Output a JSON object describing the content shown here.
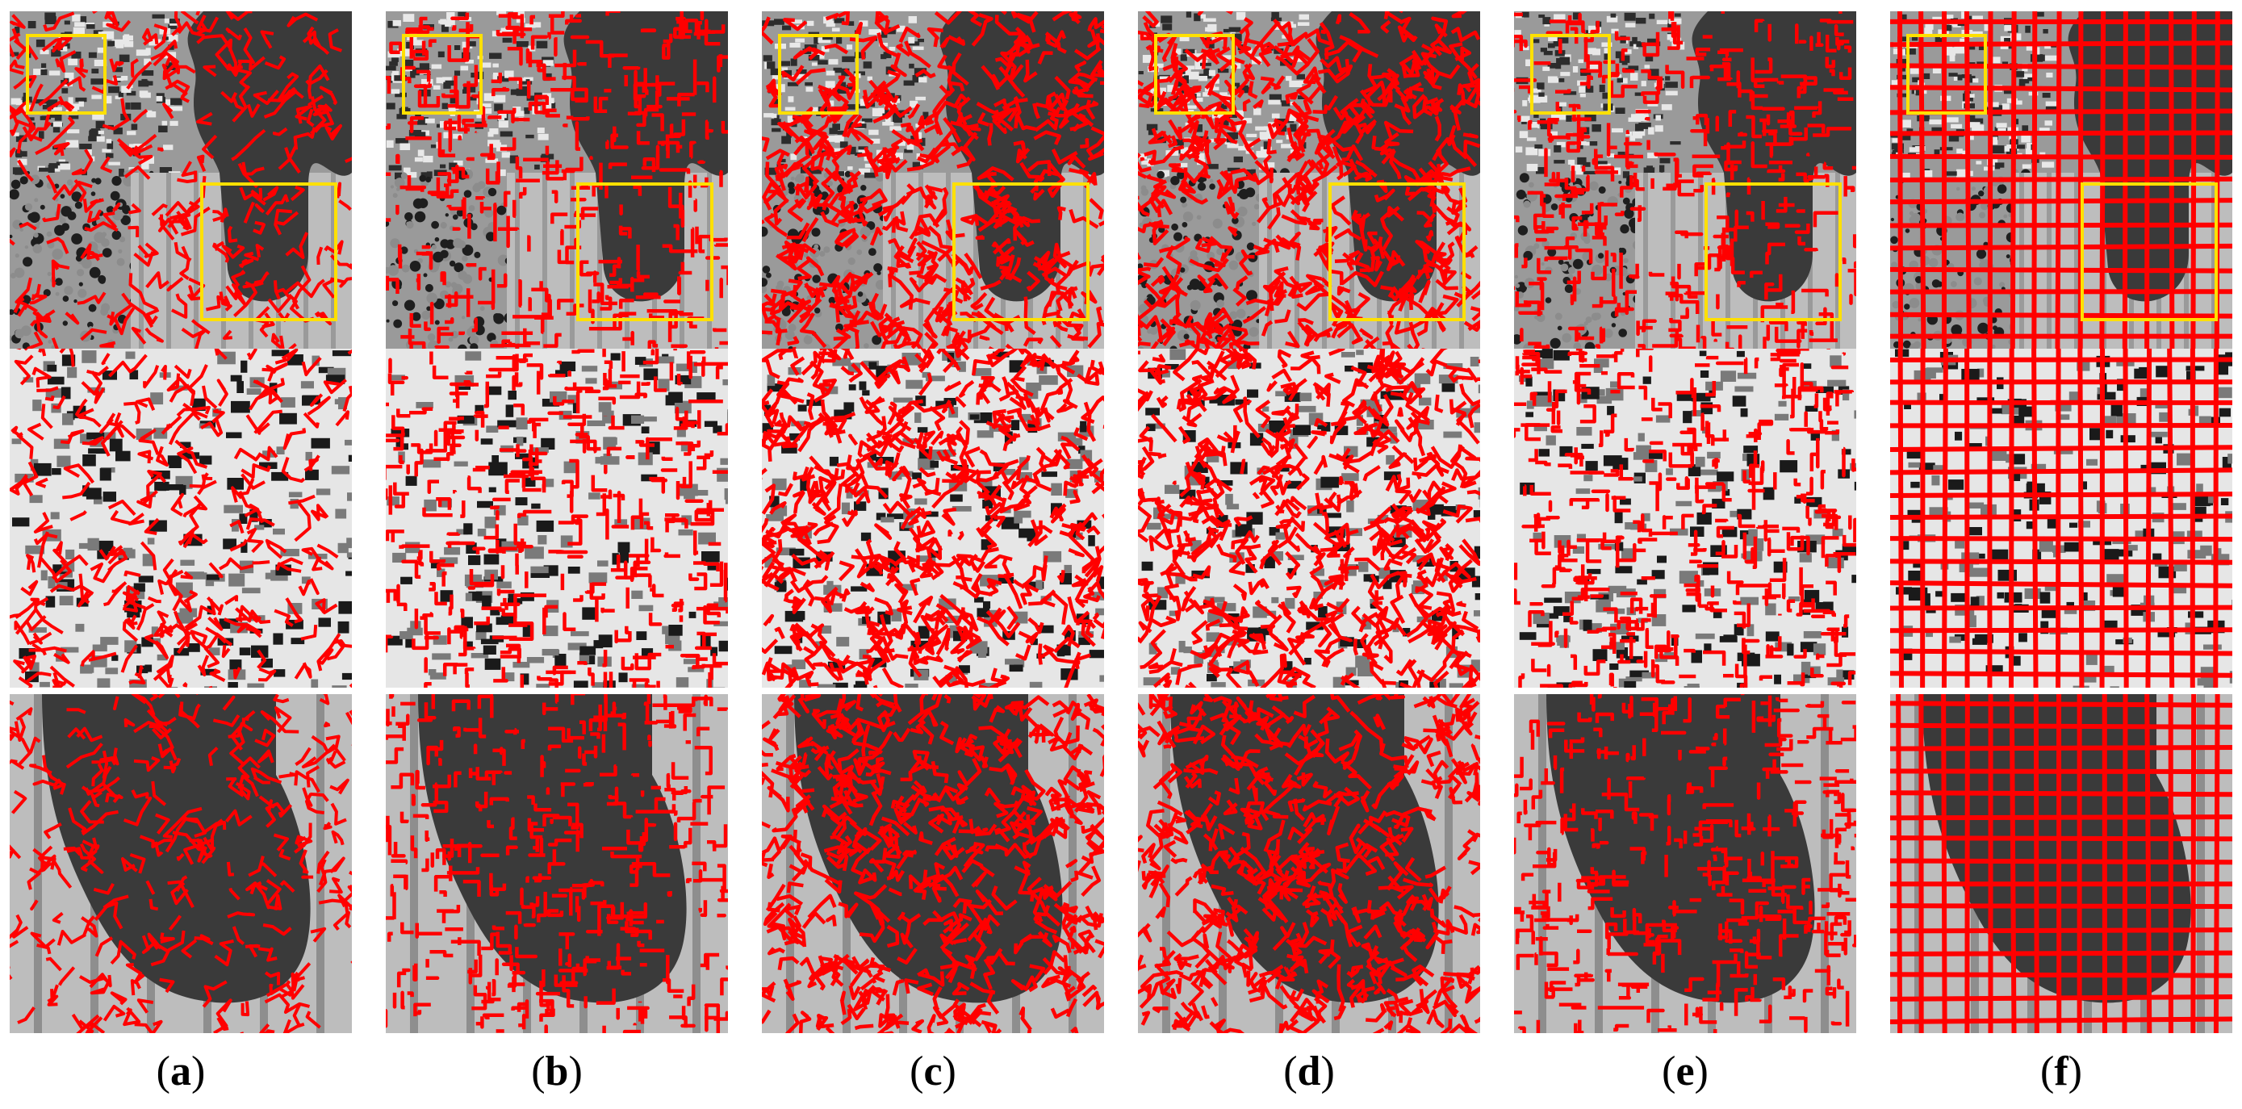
{
  "figure": {
    "panels": [
      {
        "letter": "a",
        "open": "(",
        "close": ")",
        "grid": "irregular-fine"
      },
      {
        "letter": "b",
        "open": "(",
        "close": ")",
        "grid": "irregular-jagged"
      },
      {
        "letter": "c",
        "open": "(",
        "close": ")",
        "grid": "irregular-dense"
      },
      {
        "letter": "d",
        "open": "(",
        "close": ")",
        "grid": "irregular-dense"
      },
      {
        "letter": "e",
        "open": "(",
        "close": ")",
        "grid": "irregular-jagged"
      },
      {
        "letter": "f",
        "open": "(",
        "close": ")",
        "grid": "regular-lattice"
      }
    ],
    "rows": [
      "full-texture-image",
      "zoom-upper-left-texture",
      "zoom-lower-right-blob"
    ],
    "colors": {
      "boundary": "#ff0000",
      "highlight_box": "#ffe000",
      "dark_region": "#3a3a3a",
      "light_region": "#bdbdbd",
      "texture_mid": "#7a7a7a"
    }
  }
}
